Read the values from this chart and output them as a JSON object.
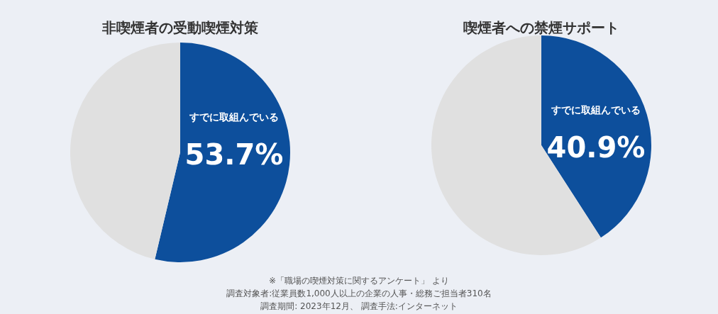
{
  "chart_data": [
    {
      "type": "pie",
      "title": "非喫煙者の受動喫煙対策",
      "categories": [
        "すでに取組んでいる",
        null
      ],
      "values": [
        53.7,
        46.3
      ],
      "colors": [
        "#0d4f9c",
        "#e0e0e0"
      ],
      "value_labels": [
        "53.7%",
        null
      ],
      "annotations": [
        "※「職場の喫煙対策に関するアンケート」 より",
        "調査対象者:従業員数1,000人以上の企業の人事・総務ご担当者310名",
        "調査期間: 2023年12月、 調査手法:インターネット"
      ]
    },
    {
      "type": "pie",
      "title": "喫煙者への禁煙サポート",
      "categories": [
        "すでに取組んでいる",
        null
      ],
      "values": [
        40.9,
        59.1
      ],
      "colors": [
        "#0d4f9c",
        "#e0e0e0"
      ],
      "value_labels": [
        "40.9%",
        null
      ]
    }
  ]
}
